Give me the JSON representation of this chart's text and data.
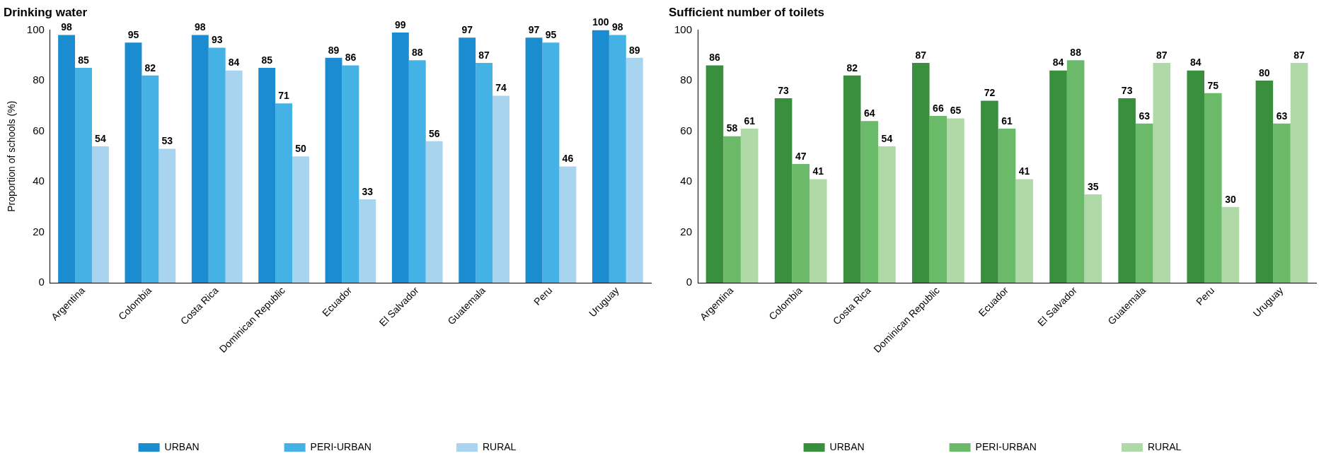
{
  "chart_data": [
    {
      "type": "bar",
      "title": "Drinking water",
      "ylabel": "Proportion of schools (%)",
      "categories": [
        "Argentina",
        "Colombia",
        "Costa Rica",
        "Dominican Republic",
        "Ecuador",
        "El Salvador",
        "Guatemala",
        "Peru",
        "Uruguay"
      ],
      "series": [
        {
          "name": "URBAN",
          "color": "#1a8ccf",
          "values": [
            98,
            95,
            98,
            85,
            89,
            99,
            97,
            97,
            100
          ]
        },
        {
          "name": "PERI-URBAN",
          "color": "#45b2e6",
          "values": [
            85,
            82,
            93,
            71,
            86,
            88,
            87,
            95,
            98
          ]
        },
        {
          "name": "RURAL",
          "color": "#a8d4f0",
          "values": [
            54,
            53,
            84,
            50,
            33,
            56,
            74,
            46,
            89
          ]
        }
      ],
      "ylim": [
        0,
        100
      ],
      "yticks": [
        0,
        20,
        40,
        60,
        80,
        100
      ],
      "grid": false,
      "legend": "bottom",
      "data_labels": true
    },
    {
      "type": "bar",
      "title": "Sufficient number of toilets",
      "categories": [
        "Argentina",
        "Colombia",
        "Costa Rica",
        "Dominican Republic",
        "Ecuador",
        "El Salvador",
        "Guatemala",
        "Peru",
        "Uruguay"
      ],
      "series": [
        {
          "name": "URBAN",
          "color": "#3a8f3e",
          "values": [
            86,
            73,
            82,
            87,
            72,
            84,
            73,
            84,
            80
          ]
        },
        {
          "name": "PERI-URBAN",
          "color": "#6aba69",
          "values": [
            58,
            47,
            64,
            66,
            61,
            88,
            63,
            75,
            63
          ]
        },
        {
          "name": "RURAL",
          "color": "#b0d9a8",
          "values": [
            61,
            41,
            54,
            65,
            41,
            35,
            87,
            30,
            87
          ]
        }
      ],
      "ylim": [
        0,
        100
      ],
      "yticks": [
        0,
        20,
        40,
        60,
        80,
        100
      ],
      "grid": false,
      "legend": "bottom",
      "data_labels": true
    }
  ]
}
